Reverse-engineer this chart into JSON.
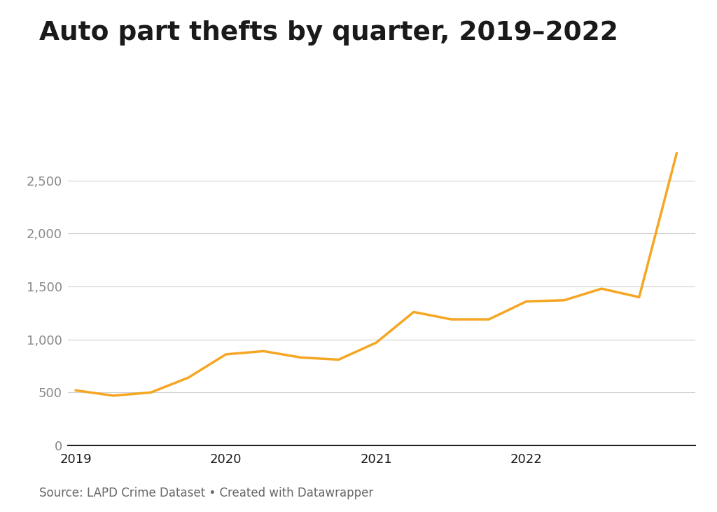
{
  "title": "Auto part thefts by quarter, 2019–2022",
  "source_text": "Source: LAPD Crime Dataset • Created with Datawrapper",
  "line_color": "#f5a623",
  "background_color": "#ffffff",
  "x_values": [
    0,
    1,
    2,
    3,
    4,
    5,
    6,
    7,
    8,
    9,
    10,
    11,
    12,
    13,
    14,
    15,
    16
  ],
  "y_values": [
    520,
    470,
    500,
    640,
    860,
    890,
    830,
    810,
    970,
    1260,
    1190,
    1190,
    1360,
    1370,
    1480,
    1400,
    2760
  ],
  "y_ticks": [
    0,
    500,
    1000,
    1500,
    2000,
    2500
  ],
  "ylim": [
    0,
    2900
  ],
  "xlim": [
    -0.2,
    16.5
  ],
  "x_tick_positions": [
    0,
    4,
    8,
    12
  ],
  "x_tick_labels": [
    "2019",
    "2020",
    "2021",
    "2022"
  ],
  "title_fontsize": 27,
  "axis_fontsize": 13,
  "source_fontsize": 12,
  "line_width": 2.5,
  "grid_color": "#d0d0d0",
  "bottom_spine_color": "#222222",
  "text_color": "#1a1a1a",
  "source_color": "#666666"
}
